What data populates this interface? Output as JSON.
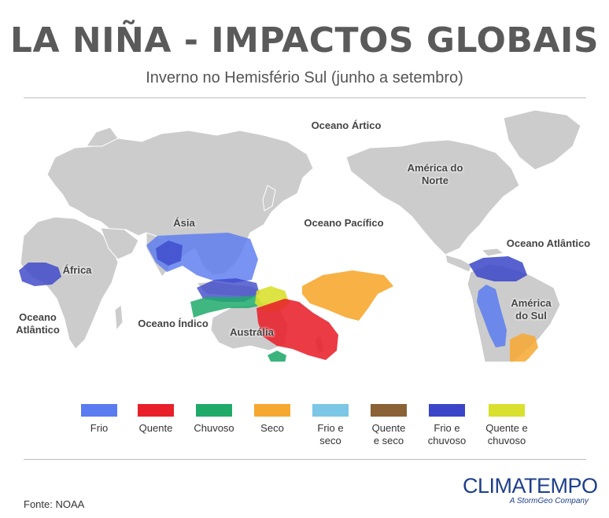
{
  "header": {
    "title": "LA NIÑA - IMPACTOS GLOBAIS",
    "subtitle": "Inverno no Hemisfério Sul (junho a setembro)"
  },
  "map": {
    "labels": {
      "arctic_ocean": "Oceano Ártico",
      "north_america": "América do Norte",
      "asia": "Ásia",
      "pacific_ocean": "Oceano Pacífico",
      "atlantic_ocean_north": "Oceano Atlântico",
      "africa": "África",
      "atlantic_ocean_south": "Oceano Atlântico",
      "indian_ocean": "Oceano Índico",
      "australia": "Austrália",
      "south_america": "América do Sul"
    },
    "land_color": "#cccccc",
    "land_border_color": "#ffffff"
  },
  "legend": {
    "items": [
      {
        "label": "Frio",
        "color": "#5b7bf0"
      },
      {
        "label": "Quente",
        "color": "#e8202a"
      },
      {
        "label": "Chuvoso",
        "color": "#1faa6a"
      },
      {
        "label": "Seco",
        "color": "#f7a830"
      },
      {
        "label": "Frio e seco",
        "color": "#7cc6e6"
      },
      {
        "label": "Quente e seco",
        "color": "#8b6136"
      },
      {
        "label": "Frio e chuvoso",
        "color": "#3a45c8"
      },
      {
        "label": "Quente e chuvoso",
        "color": "#d9e02e"
      }
    ]
  },
  "footer": {
    "source": "Fonte: NOAA",
    "logo_name": "CLIMATEMPO",
    "logo_tagline": "A StormGeo Company"
  }
}
